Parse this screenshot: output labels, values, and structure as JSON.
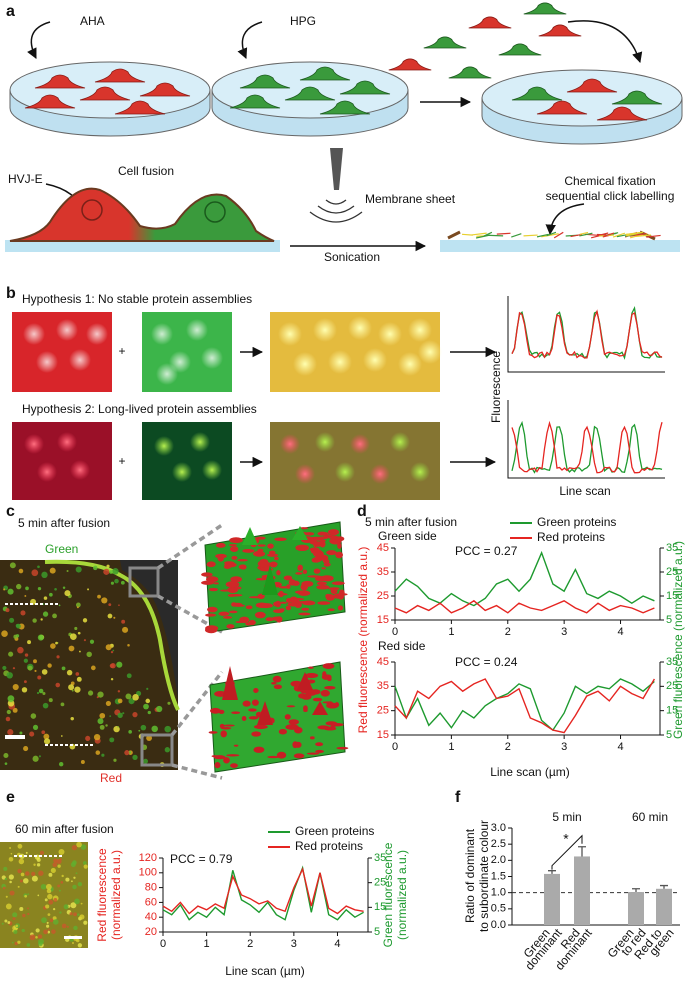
{
  "panel_labels": [
    "a",
    "b",
    "c",
    "d",
    "e",
    "f"
  ],
  "panel_a": {
    "reagent_1": "AHA",
    "reagent_2": "HPG",
    "fusion_agent": "HVJ-E",
    "fusion": "Cell fusion",
    "method": "Sonication",
    "product": "Membrane sheet",
    "labelling": [
      "Chemical fixation",
      "sequential click labelling"
    ]
  },
  "panel_b": {
    "hypothesis_1": "Hypothesis 1: No stable protein assemblies",
    "hypothesis_2": "Hypothesis 2: Long-lived protein assemblies",
    "operator": "+",
    "ylabel": "Fluorescence",
    "xlabel": "Line scan"
  },
  "panel_c": {
    "title": "5 min after fusion",
    "top_label": "Green",
    "bottom_label": "Red"
  },
  "panel_e": {
    "title": "60 min after fusion"
  },
  "chart_data": [
    {
      "type": "line",
      "title": "5 min after fusion",
      "subtitle": "Green side",
      "annotation": "PCC = 0.27",
      "ylabel": "Red fluorescence (normalized a.u.)",
      "y2label": "Green fluorescence (normalized a.u.)",
      "x": [
        0,
        0.2,
        0.4,
        0.6,
        0.8,
        1.0,
        1.2,
        1.4,
        1.6,
        1.8,
        2.0,
        2.2,
        2.4,
        2.6,
        2.8,
        3.0,
        3.2,
        3.4,
        3.6,
        3.8,
        4.0,
        4.2,
        4.4,
        4.6
      ],
      "xlim": [
        0,
        4.7
      ],
      "xticks": [
        0,
        1,
        2,
        3,
        4
      ],
      "ylim": [
        15,
        45
      ],
      "yticks": [
        15,
        25,
        35,
        45
      ],
      "y2lim": [
        5,
        35
      ],
      "y2ticks": [
        5,
        15,
        25,
        35
      ],
      "series": [
        {
          "name": "Green proteins",
          "color": "#1e9a2f",
          "axis": "y2",
          "values": [
            17,
            22,
            19,
            14,
            12,
            16,
            13,
            11,
            14,
            20,
            22,
            17,
            22,
            33,
            20,
            17,
            26,
            16,
            14,
            17,
            15,
            12,
            15,
            13
          ]
        },
        {
          "name": "Red proteins",
          "color": "#e52521",
          "values": [
            20,
            18,
            21,
            19,
            22,
            18,
            20,
            23,
            19,
            21,
            18,
            22,
            20,
            19,
            21,
            23,
            20,
            18,
            22,
            19,
            21,
            20,
            18,
            20
          ]
        }
      ]
    },
    {
      "type": "line",
      "subtitle": "Red side",
      "annotation": "PCC = 0.24",
      "xlabel": "Line scan (µm)",
      "x": [
        0,
        0.2,
        0.4,
        0.6,
        0.8,
        1.0,
        1.2,
        1.4,
        1.6,
        1.8,
        2.0,
        2.2,
        2.4,
        2.6,
        2.8,
        3.0,
        3.2,
        3.4,
        3.6,
        3.8,
        4.0,
        4.2,
        4.4,
        4.6
      ],
      "xlim": [
        0,
        4.7
      ],
      "xticks": [
        0,
        1,
        2,
        3,
        4
      ],
      "ylim": [
        15,
        45
      ],
      "yticks": [
        15,
        25,
        35,
        45
      ],
      "y2lim": [
        5,
        35
      ],
      "y2ticks": [
        5,
        15,
        25,
        35
      ],
      "series": [
        {
          "color": "#1e9a2f",
          "axis": "y2",
          "values": [
            25,
            12,
            20,
            9,
            14,
            8,
            15,
            12,
            17,
            20,
            22,
            26,
            24,
            11,
            7,
            14,
            25,
            22,
            25,
            24,
            28,
            26,
            23,
            27
          ]
        },
        {
          "color": "#e52521",
          "values": [
            27,
            22,
            33,
            30,
            35,
            37,
            33,
            36,
            38,
            30,
            31,
            34,
            22,
            20,
            17,
            16,
            23,
            31,
            33,
            29,
            35,
            32,
            30,
            38
          ]
        }
      ]
    },
    {
      "type": "line",
      "annotation": "PCC = 0.79",
      "xlabel": "Line scan (µm)",
      "ylabel": [
        "Red fluorescence",
        "(normalized a.u.)"
      ],
      "y2label": [
        "Green fluorescence",
        "(normalized a.u.)"
      ],
      "x": [
        0,
        0.2,
        0.4,
        0.6,
        0.8,
        1.0,
        1.2,
        1.4,
        1.6,
        1.8,
        2.0,
        2.2,
        2.4,
        2.6,
        2.8,
        3.0,
        3.2,
        3.4,
        3.6,
        3.8,
        4.0,
        4.2,
        4.4,
        4.6
      ],
      "xlim": [
        0,
        4.7
      ],
      "xticks": [
        0,
        1,
        2,
        3,
        4
      ],
      "ylim": [
        20,
        120
      ],
      "yticks": [
        20,
        40,
        60,
        80,
        100,
        120
      ],
      "y2lim": [
        5,
        35
      ],
      "y2ticks": [
        5,
        15,
        25,
        35
      ],
      "series": [
        {
          "name": "Green proteins",
          "color": "#1e9a2f",
          "axis": "y2",
          "values": [
            14,
            12,
            16,
            10,
            13,
            11,
            15,
            12,
            30,
            18,
            16,
            13,
            17,
            12,
            10,
            22,
            31,
            13,
            29,
            12,
            10,
            14,
            11,
            13
          ]
        },
        {
          "name": "Red proteins",
          "color": "#e52521",
          "values": [
            55,
            48,
            60,
            45,
            55,
            50,
            58,
            52,
            95,
            70,
            65,
            58,
            62,
            52,
            48,
            80,
            105,
            55,
            100,
            52,
            45,
            55,
            50,
            48
          ]
        }
      ]
    },
    {
      "type": "bar",
      "ylabel": [
        "Ratio of dominant",
        "to subordinate colour"
      ],
      "groups": [
        "5 min",
        "60 min"
      ],
      "annotation": "*",
      "categories": [
        [
          "Green",
          "dominant"
        ],
        [
          "Red",
          "dominant"
        ],
        [
          "Green",
          "to red"
        ],
        [
          "Red to",
          "green"
        ]
      ],
      "values": [
        1.58,
        2.12,
        1.02,
        1.12
      ],
      "errors": [
        0.1,
        0.3,
        0.1,
        0.1
      ],
      "color": "#aaaaaa",
      "ylim": [
        0,
        3
      ],
      "yticks": [
        {
          "value": 0,
          "label": "0.0"
        },
        0.5,
        {
          "value": 1,
          "label": "1.0"
        },
        1.5,
        {
          "value": 2,
          "label": "2.0"
        },
        2.5,
        {
          "value": 3,
          "label": "3.0"
        }
      ],
      "reference_line": 1
    }
  ]
}
